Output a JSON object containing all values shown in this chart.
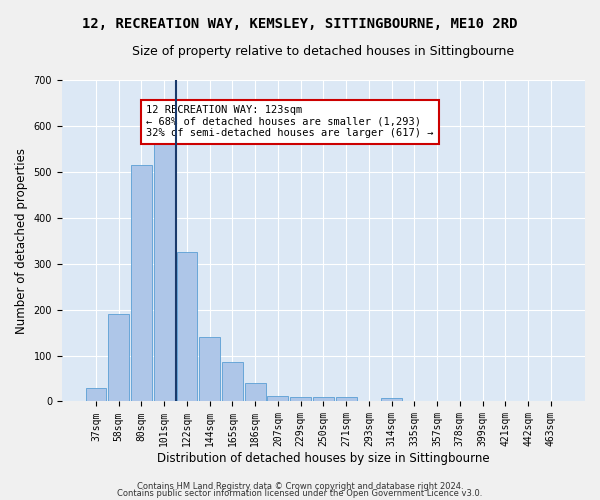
{
  "title": "12, RECREATION WAY, KEMSLEY, SITTINGBOURNE, ME10 2RD",
  "subtitle": "Size of property relative to detached houses in Sittingbourne",
  "xlabel": "Distribution of detached houses by size in Sittingbourne",
  "ylabel": "Number of detached properties",
  "footnote1": "Contains HM Land Registry data © Crown copyright and database right 2024.",
  "footnote2": "Contains public sector information licensed under the Open Government Licence v3.0.",
  "bar_values": [
    30,
    190,
    515,
    560,
    325,
    140,
    87,
    40,
    13,
    10,
    9,
    9,
    0,
    8,
    0,
    0,
    0,
    0,
    0,
    0,
    0
  ],
  "bin_labels": [
    "37sqm",
    "58sqm",
    "80sqm",
    "101sqm",
    "122sqm",
    "144sqm",
    "165sqm",
    "186sqm",
    "207sqm",
    "229sqm",
    "250sqm",
    "271sqm",
    "293sqm",
    "314sqm",
    "335sqm",
    "357sqm",
    "378sqm",
    "399sqm",
    "421sqm",
    "442sqm",
    "463sqm"
  ],
  "bar_color": "#aec6e8",
  "bar_edge_color": "#5a9fd4",
  "vline_color": "#1a3a6b",
  "annotation_text": "12 RECREATION WAY: 123sqm\n← 68% of detached houses are smaller (1,293)\n32% of semi-detached houses are larger (617) →",
  "annotation_box_color": "#ffffff",
  "annotation_box_edge": "#cc0000",
  "ylim": [
    0,
    700
  ],
  "yticks": [
    0,
    100,
    200,
    300,
    400,
    500,
    600,
    700
  ],
  "bg_color": "#dce8f5",
  "fig_bg_color": "#f0f0f0",
  "grid_color": "#ffffff",
  "title_fontsize": 10,
  "subtitle_fontsize": 9,
  "axis_label_fontsize": 8.5,
  "tick_fontsize": 7,
  "annotation_fontsize": 7.5
}
